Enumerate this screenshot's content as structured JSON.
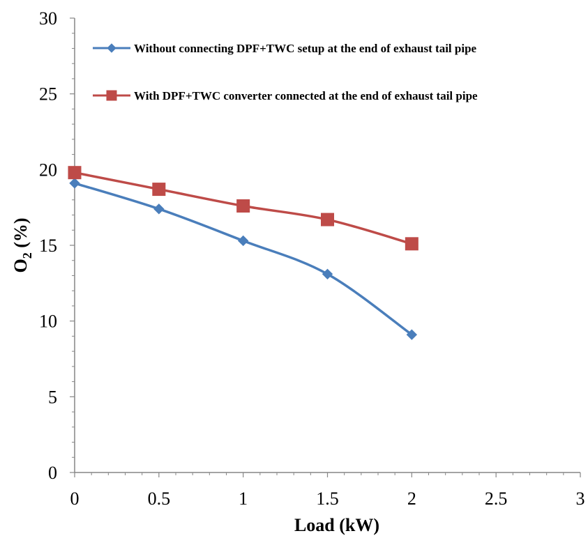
{
  "chart_data": {
    "type": "line",
    "xlabel": "Load (kW)",
    "ylabel_main": "O",
    "ylabel_sub": "2",
    "ylabel_rest": " (%)",
    "xlim": [
      0,
      3
    ],
    "ylim": [
      0,
      30
    ],
    "xticks": [
      0,
      0.5,
      1,
      1.5,
      2,
      2.5,
      3
    ],
    "yticks": [
      0,
      5,
      10,
      15,
      20,
      25,
      30
    ],
    "grid": false,
    "legend_position": "top",
    "series": [
      {
        "name": "Without connecting DPF+TWC setup at the end of exhaust tail pipe",
        "color": "#4a7ebb",
        "marker": "diamond",
        "x": [
          0,
          0.5,
          1,
          1.5,
          2
        ],
        "y": [
          19.1,
          17.4,
          15.3,
          13.1,
          9.1
        ]
      },
      {
        "name": "With DPF+TWC converter connected at the end of exhaust tail pipe",
        "color": "#be4b48",
        "marker": "square",
        "x": [
          0,
          0.5,
          1,
          1.5,
          2
        ],
        "y": [
          19.8,
          18.7,
          17.6,
          16.7,
          15.1
        ]
      }
    ]
  }
}
